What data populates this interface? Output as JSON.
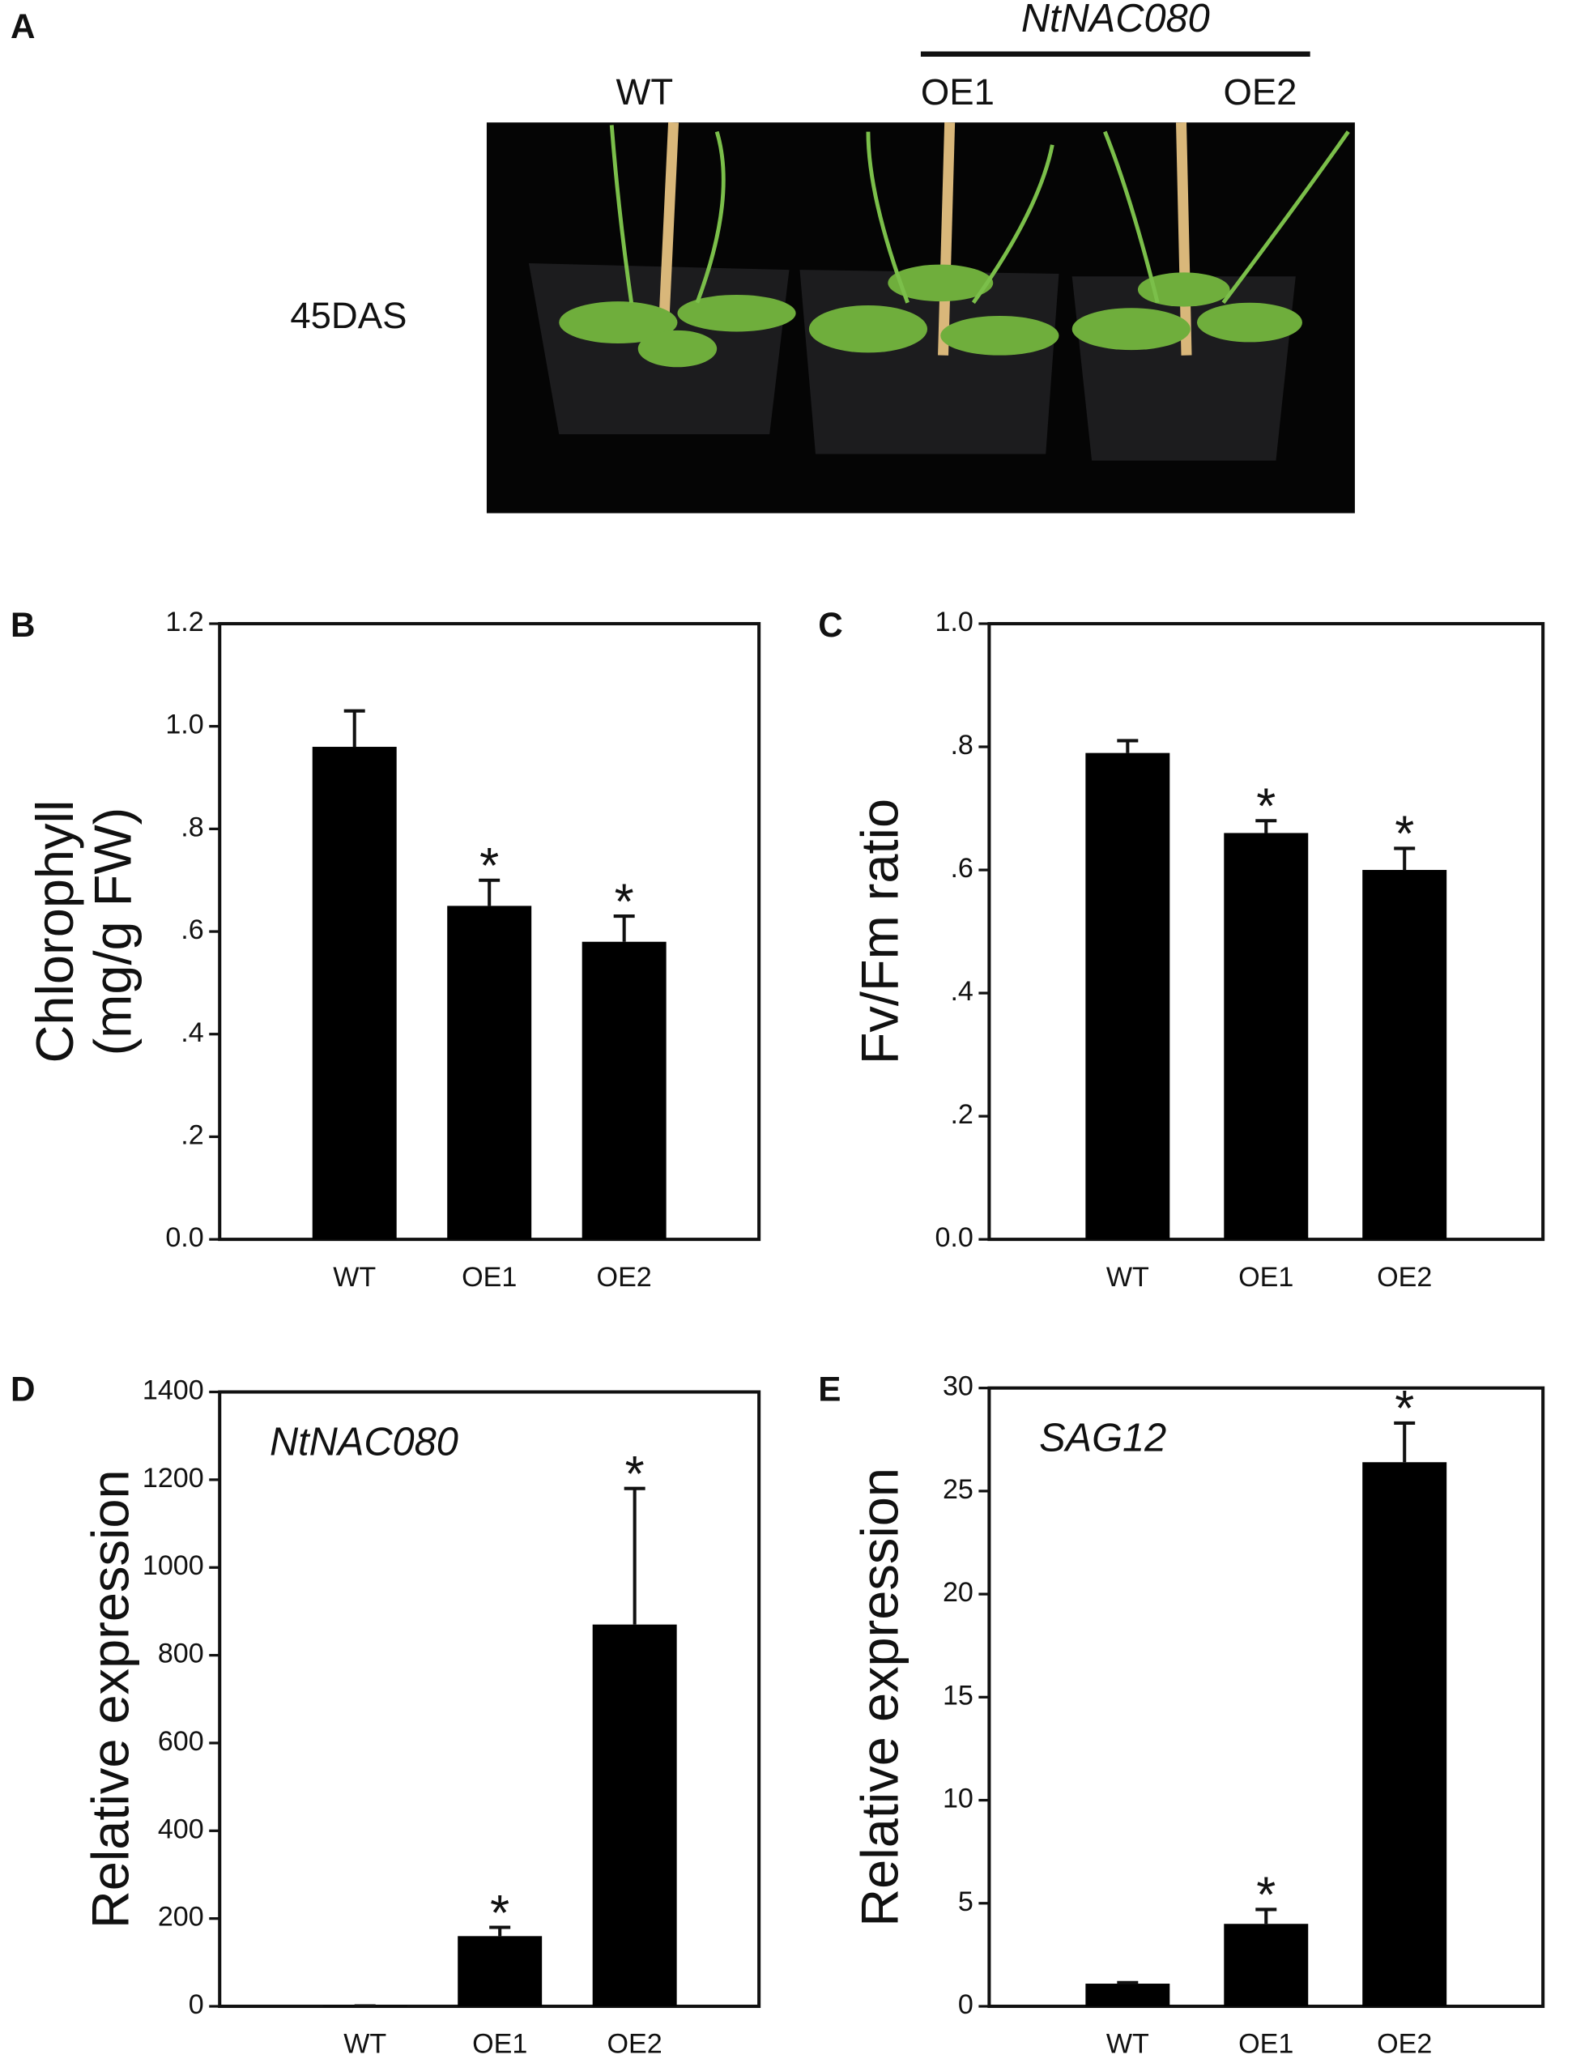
{
  "photo_panel": {
    "panel": "A",
    "group_label": "NtNAC080",
    "labels": [
      "WT",
      "OE1",
      "OE2"
    ],
    "row_label": "45DAS"
  },
  "chart_data": [
    {
      "type": "bar",
      "panel": "B",
      "ylabel": [
        "Chlorophyll",
        "(mg/g FW)"
      ],
      "categories": [
        "WT",
        "OE1",
        "OE2"
      ],
      "values": [
        0.96,
        0.65,
        0.58
      ],
      "errors": [
        0.07,
        0.05,
        0.05
      ],
      "markers": [
        null,
        "*",
        "*"
      ],
      "color": "#000000",
      "ylim": [
        0,
        1.2
      ],
      "yticks": [
        {
          "value": 0,
          "label": "0.0"
        },
        {
          "value": 0.2,
          "label": ".2"
        },
        {
          "value": 0.4,
          "label": ".4"
        },
        {
          "value": 0.6,
          "label": ".6"
        },
        {
          "value": 0.8,
          "label": ".8"
        },
        {
          "value": 1.0,
          "label": "1.0"
        },
        1.2
      ]
    },
    {
      "type": "bar",
      "panel": "C",
      "ylabel": [
        "Fv/Fm ratio"
      ],
      "categories": [
        "WT",
        "OE1",
        "OE2"
      ],
      "values": [
        0.79,
        0.66,
        0.6
      ],
      "errors": [
        0.02,
        0.02,
        0.035
      ],
      "markers": [
        null,
        "*",
        "*"
      ],
      "color": "#000000",
      "ylim": [
        0,
        1.0
      ],
      "yticks": [
        {
          "value": 0,
          "label": "0.0"
        },
        {
          "value": 0.2,
          "label": ".2"
        },
        {
          "value": 0.4,
          "label": ".4"
        },
        {
          "value": 0.6,
          "label": ".6"
        },
        {
          "value": 0.8,
          "label": ".8"
        },
        {
          "value": 1.0,
          "label": "1.0"
        }
      ]
    },
    {
      "type": "bar",
      "panel": "D",
      "ylabel": [
        "Relative expression"
      ],
      "annotation": "NtNAC080",
      "categories": [
        "WT",
        "OE1",
        "OE2"
      ],
      "values": [
        1,
        160,
        870
      ],
      "errors": [
        0,
        20,
        310
      ],
      "markers": [
        null,
        "*",
        "*"
      ],
      "color": "#000000",
      "ylim": [
        0,
        1400
      ],
      "yticks": [
        0,
        200,
        400,
        600,
        800,
        1000,
        1200,
        1400
      ]
    },
    {
      "type": "bar",
      "panel": "E",
      "ylabel": [
        "Relative expression"
      ],
      "annotation": "SAG12",
      "categories": [
        "WT",
        "OE1",
        "OE2"
      ],
      "values": [
        1.1,
        4.0,
        26.4
      ],
      "errors": [
        0.05,
        0.7,
        1.9
      ],
      "markers": [
        null,
        "*",
        "*"
      ],
      "color": "#000000",
      "ylim": [
        0,
        30
      ],
      "yticks": [
        0,
        5,
        10,
        15,
        20,
        25,
        30
      ]
    }
  ]
}
